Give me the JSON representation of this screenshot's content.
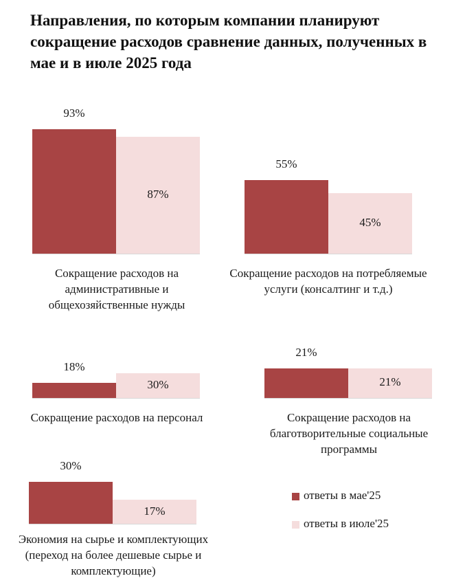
{
  "title": "Направления, по которым компании планируют сокращение расходов  сравнение данных, полученных в мае и в июле 2025 года",
  "colors": {
    "may": "#a84444",
    "july": "#f5dddd"
  },
  "chart_data": {
    "type": "bar",
    "title": "Направления, по которым компании планируют сокращение расходов  сравнение данных, полученных в мае и в июле 2025 года",
    "series": [
      {
        "name": "ответы в мае'25",
        "values": [
          93,
          55,
          18,
          21,
          30
        ]
      },
      {
        "name": "ответы в июле'25",
        "values": [
          87,
          45,
          30,
          21,
          17
        ]
      }
    ],
    "categories": [
      "Сокращение расходов на административные и общехозяйственные нужды",
      "Сокращение расходов на потребляемые услуги (консалтинг и т.д.)",
      "Сокращение расходов на персонал",
      "Сокращение расходов на благотворительные социальные программы",
      "Экономия на сырье и комплектующих (переход на более дешевые сырье и комплектующие)"
    ],
    "value_labels": [
      [
        "93%",
        "87%"
      ],
      [
        "55%",
        "45%"
      ],
      [
        "18%",
        "30%"
      ],
      [
        "21%",
        "21%"
      ],
      [
        "30%",
        "17%"
      ]
    ],
    "ylim": [
      0,
      100
    ],
    "legend": "bottom-right"
  },
  "legend": [
    {
      "label": "ответы в мае'25"
    },
    {
      "label": "ответы в июле'25"
    }
  ]
}
